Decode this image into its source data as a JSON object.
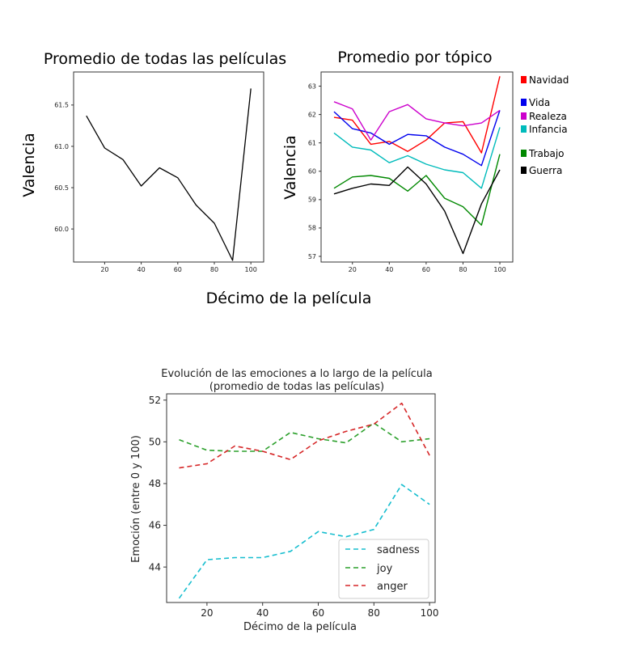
{
  "figure": {
    "shared_xlabel": "Décimo de la película"
  },
  "chart_data": [
    {
      "type": "line",
      "title": "Promedio de todas las películas",
      "xlabel": "",
      "ylabel": "Valencia",
      "xlim": [
        3,
        107
      ],
      "ylim": [
        59.6,
        61.9
      ],
      "xticks": [
        20,
        40,
        60,
        80,
        100
      ],
      "yticks": [
        60.0,
        60.5,
        61.0,
        61.5
      ],
      "ytick_labels": [
        "60.0",
        "60.5",
        "61.0",
        "61.5"
      ],
      "line_color": "#000000",
      "x": [
        10,
        20,
        30,
        40,
        50,
        60,
        70,
        80,
        90,
        100
      ],
      "series": [
        {
          "values": [
            61.37,
            60.98,
            60.84,
            60.52,
            60.74,
            60.62,
            60.29,
            60.07,
            59.62,
            61.7
          ],
          "color": "#000000"
        }
      ]
    },
    {
      "type": "line",
      "title": "Promedio por tópico",
      "xlabel": "",
      "ylabel": "Valencia",
      "xlim": [
        3,
        107
      ],
      "ylim": [
        56.8,
        63.5
      ],
      "xticks": [
        20,
        40,
        60,
        80,
        100
      ],
      "yticks": [
        57,
        58,
        59,
        60,
        61,
        62,
        63
      ],
      "legend_placement": "outside right",
      "x": [
        10,
        20,
        30,
        40,
        50,
        60,
        70,
        80,
        90,
        100
      ],
      "series": [
        {
          "name": "Navidad",
          "color": "#ff0000",
          "values": [
            61.9,
            61.8,
            60.95,
            61.05,
            60.7,
            61.1,
            61.7,
            61.75,
            60.65,
            63.35
          ]
        },
        {
          "name": "Vida",
          "color": "#0000ee",
          "values": [
            62.1,
            61.5,
            61.35,
            60.95,
            61.3,
            61.25,
            60.85,
            60.6,
            60.2,
            62.15
          ]
        },
        {
          "name": "Realeza",
          "color": "#cc00cc",
          "values": [
            62.45,
            62.2,
            61.1,
            62.1,
            62.35,
            61.85,
            61.7,
            61.6,
            61.7,
            62.15
          ]
        },
        {
          "name": "Infancia",
          "color": "#00bbbb",
          "values": [
            61.35,
            60.85,
            60.75,
            60.3,
            60.55,
            60.25,
            60.05,
            59.95,
            59.4,
            61.55
          ]
        },
        {
          "name": "Trabajo",
          "color": "#008800",
          "values": [
            59.4,
            59.8,
            59.85,
            59.75,
            59.3,
            59.85,
            59.05,
            58.75,
            58.1,
            60.6
          ]
        },
        {
          "name": "Guerra",
          "color": "#000000",
          "values": [
            59.2,
            59.4,
            59.55,
            59.5,
            60.15,
            59.55,
            58.6,
            57.1,
            58.85,
            60.05
          ]
        }
      ]
    },
    {
      "type": "line",
      "title": "Evolución de las emociones a lo largo de la película",
      "subtitle": "(promedio de todas las películas)",
      "xlabel": "Décimo de la película",
      "ylabel": "Emoción (entre 0 y 100)",
      "xlim": [
        5.5,
        102
      ],
      "ylim": [
        42.3,
        52.3
      ],
      "xticks": [
        20,
        40,
        60,
        80,
        100
      ],
      "yticks": [
        44,
        46,
        48,
        50,
        52
      ],
      "legend_placement": "lower right",
      "line_style": "dashed",
      "x": [
        10,
        20,
        30,
        40,
        50,
        60,
        70,
        80,
        90,
        100
      ],
      "series": [
        {
          "name": "sadness",
          "color": "#17becf",
          "values": [
            42.5,
            44.35,
            44.45,
            44.45,
            44.75,
            45.7,
            45.45,
            45.8,
            47.95,
            47.0
          ]
        },
        {
          "name": "joy",
          "color": "#2ca02c",
          "values": [
            50.1,
            49.6,
            49.55,
            49.55,
            50.45,
            50.15,
            49.95,
            50.9,
            50.0,
            50.15
          ]
        },
        {
          "name": "anger",
          "color": "#d62728",
          "values": [
            48.75,
            48.95,
            49.8,
            49.55,
            49.15,
            50.05,
            50.5,
            50.85,
            51.85,
            49.35
          ]
        }
      ]
    }
  ]
}
